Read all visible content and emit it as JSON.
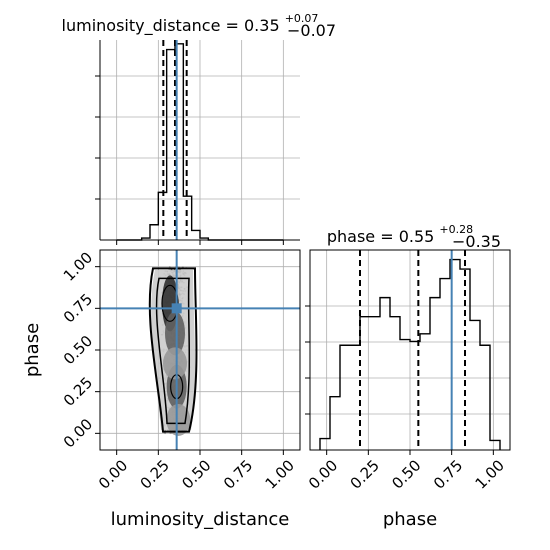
{
  "chart_data": {
    "type": "corner",
    "parameters": [
      "luminosity_distance",
      "phase"
    ],
    "truths": {
      "luminosity_distance": 0.36,
      "phase": 0.75
    },
    "colors": {
      "truth": "#4682b4",
      "hist": "#000000",
      "grid": "#b0b0b0",
      "density": "#000000"
    },
    "titles": {
      "luminosity_distance": {
        "prefix": "luminosity_distance = 0.35",
        "sup": "+0.07",
        "sub": "−0.07"
      },
      "phase": {
        "prefix": "phase = 0.55",
        "sup": "+0.28",
        "sub": "−0.35"
      }
    },
    "xlabels": {
      "luminosity_distance": "luminosity_distance",
      "phase": "phase"
    },
    "ylabel": "phase",
    "ticks": {
      "values": [
        0.0,
        0.25,
        0.5,
        0.75,
        1.0
      ],
      "labels": [
        "0.00",
        "0.25",
        "0.50",
        "0.75",
        "1.00"
      ]
    },
    "grid": true,
    "hist_luminosity_distance": {
      "bin_edges": [
        0.0,
        0.05,
        0.1,
        0.15,
        0.2,
        0.25,
        0.3,
        0.35,
        0.4,
        0.45,
        0.5,
        0.55,
        0.6,
        0.65,
        0.7,
        0.75,
        0.8,
        0.85,
        0.9,
        0.95,
        1.0
      ],
      "values": [
        0.0,
        0.0,
        0.0,
        0.01,
        0.08,
        0.25,
        1.0,
        1.03,
        0.23,
        0.05,
        0.01,
        0.0,
        0.0,
        0.0,
        0.0,
        0.0,
        0.0,
        0.0,
        0.0,
        0.0
      ],
      "quantiles": [
        0.28,
        0.35,
        0.42
      ],
      "xlim": [
        -0.1,
        1.1
      ],
      "ylim": [
        0,
        1.05
      ]
    },
    "hist_phase": {
      "bin_edges": [
        -0.04,
        0.02,
        0.08,
        0.14,
        0.2,
        0.26,
        0.32,
        0.38,
        0.44,
        0.5,
        0.56,
        0.62,
        0.68,
        0.74,
        0.8,
        0.86,
        0.92,
        0.98,
        1.04
      ],
      "values": [
        0.06,
        0.28,
        0.55,
        0.55,
        0.7,
        0.7,
        0.8,
        0.7,
        0.58,
        0.57,
        0.61,
        0.8,
        0.9,
        1.0,
        0.95,
        0.68,
        0.55,
        0.05
      ],
      "quantiles": [
        0.2,
        0.55,
        0.83
      ],
      "xlim": [
        -0.1,
        1.1
      ],
      "ylim": [
        0,
        1.05
      ]
    },
    "scatter_2d": {
      "x_label": "luminosity_distance",
      "y_label": "phase",
      "xlim": [
        -0.1,
        1.1
      ],
      "ylim": [
        -0.1,
        1.1
      ],
      "center_x": 0.35,
      "spread_x": 0.08,
      "phase_range": [
        0.0,
        1.0
      ],
      "contour_levels": [
        "0.5",
        "1.0",
        "1.5",
        "2.0"
      ],
      "dense_regions": [
        {
          "x": 0.32,
          "y": 0.78,
          "level": 3
        },
        {
          "x": 0.35,
          "y": 0.6,
          "level": 2
        },
        {
          "x": 0.36,
          "y": 0.28,
          "level": 2
        },
        {
          "x": 0.35,
          "y": 0.42,
          "level": 1
        },
        {
          "x": 0.37,
          "y": 0.08,
          "level": 1
        }
      ]
    }
  }
}
